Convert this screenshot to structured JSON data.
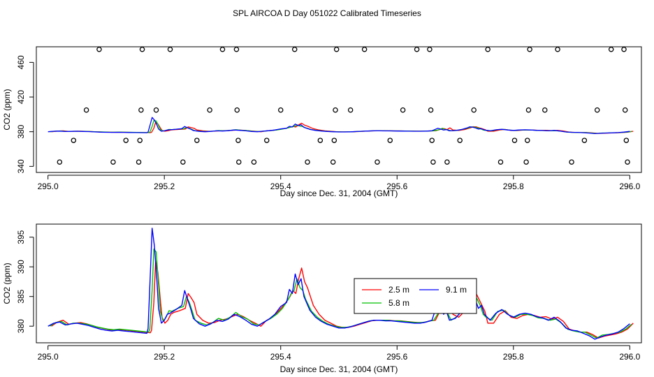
{
  "title": "SPL AIRCOA D  Day 051022  Calibrated Timeseries",
  "chart_data": [
    {
      "type": "scatter+line",
      "xlabel": "Day since Dec. 31, 2004 (GMT)",
      "ylabel": "CO2 (ppm)",
      "xlim": [
        294.98,
        296.02
      ],
      "ylim": [
        333,
        478
      ],
      "x_ticks": [
        295.0,
        295.2,
        295.4,
        295.6,
        295.8,
        296.0
      ],
      "x_tick_labels": [
        "295.0",
        "295.2",
        "295.4",
        "295.6",
        "295.8",
        "296.0"
      ],
      "y_ticks": [
        340,
        380,
        420,
        460
      ],
      "y_tick_labels": [
        "340",
        "380",
        "420",
        "460"
      ],
      "calibration_points": [
        {
          "x": 295.02,
          "y": 345
        },
        {
          "x": 295.044,
          "y": 370
        },
        {
          "x": 295.066,
          "y": 405
        },
        {
          "x": 295.088,
          "y": 475
        },
        {
          "x": 295.112,
          "y": 345
        },
        {
          "x": 295.134,
          "y": 370
        },
        {
          "x": 295.156,
          "y": 345
        },
        {
          "x": 295.158,
          "y": 370
        },
        {
          "x": 295.16,
          "y": 405
        },
        {
          "x": 295.162,
          "y": 475
        },
        {
          "x": 295.186,
          "y": 405
        },
        {
          "x": 295.21,
          "y": 475
        },
        {
          "x": 295.232,
          "y": 345
        },
        {
          "x": 295.256,
          "y": 370
        },
        {
          "x": 295.278,
          "y": 405
        },
        {
          "x": 295.3,
          "y": 475
        },
        {
          "x": 295.324,
          "y": 475
        },
        {
          "x": 295.325,
          "y": 405
        },
        {
          "x": 295.327,
          "y": 370
        },
        {
          "x": 295.328,
          "y": 345
        },
        {
          "x": 295.354,
          "y": 345
        },
        {
          "x": 295.376,
          "y": 370
        },
        {
          "x": 295.4,
          "y": 405
        },
        {
          "x": 295.424,
          "y": 475
        },
        {
          "x": 295.446,
          "y": 345
        },
        {
          "x": 295.468,
          "y": 370
        },
        {
          "x": 295.49,
          "y": 345
        },
        {
          "x": 295.492,
          "y": 370
        },
        {
          "x": 295.494,
          "y": 405
        },
        {
          "x": 295.496,
          "y": 475
        },
        {
          "x": 295.52,
          "y": 405
        },
        {
          "x": 295.544,
          "y": 475
        },
        {
          "x": 295.566,
          "y": 345
        },
        {
          "x": 295.588,
          "y": 370
        },
        {
          "x": 295.61,
          "y": 405
        },
        {
          "x": 295.634,
          "y": 475
        },
        {
          "x": 295.656,
          "y": 475
        },
        {
          "x": 295.658,
          "y": 405
        },
        {
          "x": 295.66,
          "y": 370
        },
        {
          "x": 295.662,
          "y": 345
        },
        {
          "x": 295.686,
          "y": 345
        },
        {
          "x": 295.708,
          "y": 370
        },
        {
          "x": 295.732,
          "y": 405
        },
        {
          "x": 295.756,
          "y": 475
        },
        {
          "x": 295.778,
          "y": 345
        },
        {
          "x": 295.802,
          "y": 370
        },
        {
          "x": 295.822,
          "y": 345
        },
        {
          "x": 295.824,
          "y": 370
        },
        {
          "x": 295.826,
          "y": 405
        },
        {
          "x": 295.828,
          "y": 475
        },
        {
          "x": 295.854,
          "y": 405
        },
        {
          "x": 295.876,
          "y": 475
        },
        {
          "x": 295.9,
          "y": 345
        },
        {
          "x": 295.922,
          "y": 370
        },
        {
          "x": 295.944,
          "y": 405
        },
        {
          "x": 295.968,
          "y": 475
        },
        {
          "x": 295.99,
          "y": 475
        },
        {
          "x": 295.992,
          "y": 405
        },
        {
          "x": 295.994,
          "y": 370
        },
        {
          "x": 295.996,
          "y": 345
        }
      ],
      "series": [
        {
          "name": "2.5 m",
          "color": "#ff0000",
          "shift": 0.006
        },
        {
          "name": "5.8 m",
          "color": "#00c000",
          "shift": 0.003
        },
        {
          "name": "9.1 m",
          "color": "#0000ff",
          "shift": 0.0
        }
      ]
    },
    {
      "type": "line",
      "xlabel": "Day since Dec. 31, 2004 (GMT)",
      "ylabel": "CO2 (ppm)",
      "xlim": [
        294.98,
        296.02
      ],
      "ylim": [
        377.2,
        397.2
      ],
      "x_ticks": [
        295.0,
        295.2,
        295.4,
        295.6,
        295.8,
        296.0
      ],
      "x_tick_labels": [
        "295.0",
        "295.2",
        "295.4",
        "295.6",
        "295.8",
        "296.0"
      ],
      "y_ticks": [
        380,
        385,
        390,
        395
      ],
      "y_tick_labels": [
        "380",
        "385",
        "390",
        "395"
      ],
      "x": [
        295.0,
        295.01,
        295.02,
        295.03,
        295.04,
        295.05,
        295.06,
        295.07,
        295.08,
        295.09,
        295.1,
        295.11,
        295.12,
        295.13,
        295.14,
        295.15,
        295.16,
        295.17,
        295.172,
        295.176,
        295.179,
        295.183,
        295.187,
        295.19,
        295.195,
        295.2,
        295.205,
        295.21,
        295.22,
        295.23,
        295.235,
        295.24,
        295.245,
        295.25,
        295.26,
        295.27,
        295.28,
        295.29,
        295.3,
        295.31,
        295.32,
        295.33,
        295.34,
        295.35,
        295.36,
        295.37,
        295.38,
        295.39,
        295.4,
        295.41,
        295.415,
        295.42,
        295.425,
        295.43,
        295.435,
        295.44,
        295.45,
        295.46,
        295.47,
        295.48,
        295.49,
        295.5,
        295.51,
        295.52,
        295.53,
        295.54,
        295.55,
        295.56,
        295.57,
        295.58,
        295.59,
        295.6,
        295.61,
        295.62,
        295.63,
        295.64,
        295.65,
        295.66,
        295.67,
        295.675,
        295.68,
        295.685,
        295.69,
        295.7,
        295.71,
        295.72,
        295.725,
        295.73,
        295.735,
        295.74,
        295.745,
        295.75,
        295.76,
        295.77,
        295.78,
        295.79,
        295.8,
        295.81,
        295.82,
        295.83,
        295.84,
        295.85,
        295.86,
        295.87,
        295.88,
        295.89,
        295.9,
        295.91,
        295.92,
        295.93,
        295.94,
        295.95,
        295.96,
        295.97,
        295.98,
        295.99,
        296.0
      ],
      "series": [
        {
          "name": "2.5 m",
          "color": "#ff0000",
          "shift": 0.006,
          "values": [
            380.0,
            380.7,
            381.0,
            380.3,
            380.5,
            380.6,
            380.4,
            380.1,
            379.8,
            379.6,
            379.4,
            379.3,
            379.4,
            379.3,
            379.2,
            379.1,
            379.0,
            378.9,
            379.3,
            384.0,
            391.0,
            389.0,
            384.5,
            381.5,
            380.5,
            381.0,
            382.0,
            382.3,
            382.6,
            383.0,
            385.5,
            384.8,
            384.0,
            382.0,
            381.0,
            380.5,
            380.6,
            381.0,
            381.2,
            381.6,
            382.0,
            381.6,
            381.0,
            380.5,
            380.0,
            381.0,
            381.5,
            382.5,
            383.6,
            385.0,
            386.0,
            385.5,
            388.0,
            389.8,
            387.5,
            386.5,
            383.5,
            382.0,
            381.0,
            380.5,
            380.0,
            379.8,
            379.8,
            380.0,
            380.3,
            380.6,
            380.9,
            381.0,
            381.0,
            381.0,
            380.9,
            380.9,
            380.8,
            380.7,
            380.6,
            380.6,
            380.9,
            381.0,
            383.0,
            383.5,
            382.5,
            384.5,
            382.0,
            381.5,
            382.5,
            384.5,
            385.8,
            385.5,
            384.5,
            383.5,
            382.5,
            380.5,
            380.5,
            382.0,
            382.6,
            381.5,
            381.3,
            381.8,
            382.0,
            381.8,
            381.5,
            381.6,
            381.2,
            381.5,
            380.8,
            379.5,
            379.2,
            379.0,
            379.0,
            378.6,
            378.0,
            378.3,
            378.5,
            378.7,
            379.0,
            379.5,
            380.5
          ]
        },
        {
          "name": "5.8 m",
          "color": "#00c000",
          "shift": 0.003,
          "values": [
            380.0,
            380.6,
            380.8,
            380.2,
            380.5,
            380.5,
            380.4,
            380.2,
            379.9,
            379.7,
            379.5,
            379.4,
            379.5,
            379.4,
            379.3,
            379.2,
            379.1,
            379.0,
            379.5,
            386.0,
            393.0,
            392.5,
            387.0,
            382.5,
            380.8,
            381.5,
            382.6,
            382.5,
            383.0,
            383.3,
            385.0,
            384.0,
            382.5,
            381.0,
            380.5,
            380.2,
            380.6,
            381.3,
            381.0,
            381.5,
            382.3,
            381.6,
            381.2,
            380.4,
            380.2,
            380.8,
            381.3,
            382.0,
            383.0,
            384.5,
            385.5,
            386.0,
            388.0,
            386.5,
            386.0,
            384.5,
            382.5,
            381.5,
            380.8,
            380.3,
            380.0,
            379.8,
            379.8,
            380.0,
            380.3,
            380.6,
            380.9,
            381.0,
            381.0,
            381.0,
            380.9,
            380.9,
            380.8,
            380.7,
            380.6,
            380.6,
            380.8,
            381.0,
            382.5,
            384.0,
            382.5,
            382.0,
            381.0,
            381.6,
            382.8,
            384.5,
            385.5,
            385.3,
            384.5,
            383.5,
            382.0,
            381.5,
            381.0,
            382.5,
            382.7,
            381.8,
            381.5,
            382.0,
            382.0,
            381.8,
            381.4,
            381.3,
            381.0,
            381.2,
            380.5,
            379.5,
            379.2,
            379.0,
            379.0,
            378.5,
            378.0,
            378.5,
            378.6,
            378.8,
            379.0,
            379.5,
            380.3
          ]
        },
        {
          "name": "9.1 m",
          "color": "#0000ff",
          "shift": 0.0,
          "values": [
            380.0,
            380.5,
            380.7,
            380.2,
            380.4,
            380.5,
            380.3,
            380.1,
            379.8,
            379.5,
            379.3,
            379.2,
            379.3,
            379.2,
            379.1,
            379.0,
            378.9,
            378.8,
            379.6,
            389.0,
            396.5,
            393.5,
            388.0,
            383.0,
            380.5,
            381.0,
            382.0,
            382.2,
            382.8,
            383.5,
            386.0,
            384.5,
            383.0,
            381.3,
            380.4,
            380.0,
            380.4,
            381.0,
            380.8,
            381.2,
            382.0,
            381.6,
            381.0,
            380.3,
            380.0,
            380.6,
            381.2,
            382.0,
            383.3,
            384.0,
            386.2,
            385.5,
            388.8,
            387.0,
            388.0,
            385.0,
            382.7,
            381.5,
            380.8,
            380.3,
            380.0,
            379.7,
            379.7,
            379.9,
            380.2,
            380.5,
            380.8,
            381.0,
            381.0,
            380.9,
            380.9,
            380.8,
            380.7,
            380.6,
            380.5,
            380.5,
            380.7,
            381.0,
            384.0,
            383.0,
            382.0,
            382.5,
            381.0,
            381.3,
            382.4,
            384.3,
            385.7,
            385.2,
            384.3,
            383.0,
            383.5,
            382.0,
            381.0,
            382.2,
            382.8,
            382.0,
            381.5,
            382.0,
            382.2,
            382.0,
            381.6,
            381.4,
            381.0,
            381.5,
            380.8,
            379.7,
            379.3,
            379.2,
            378.8,
            378.4,
            377.8,
            378.2,
            378.5,
            378.7,
            379.0,
            379.6,
            380.4
          ]
        }
      ]
    }
  ]
}
